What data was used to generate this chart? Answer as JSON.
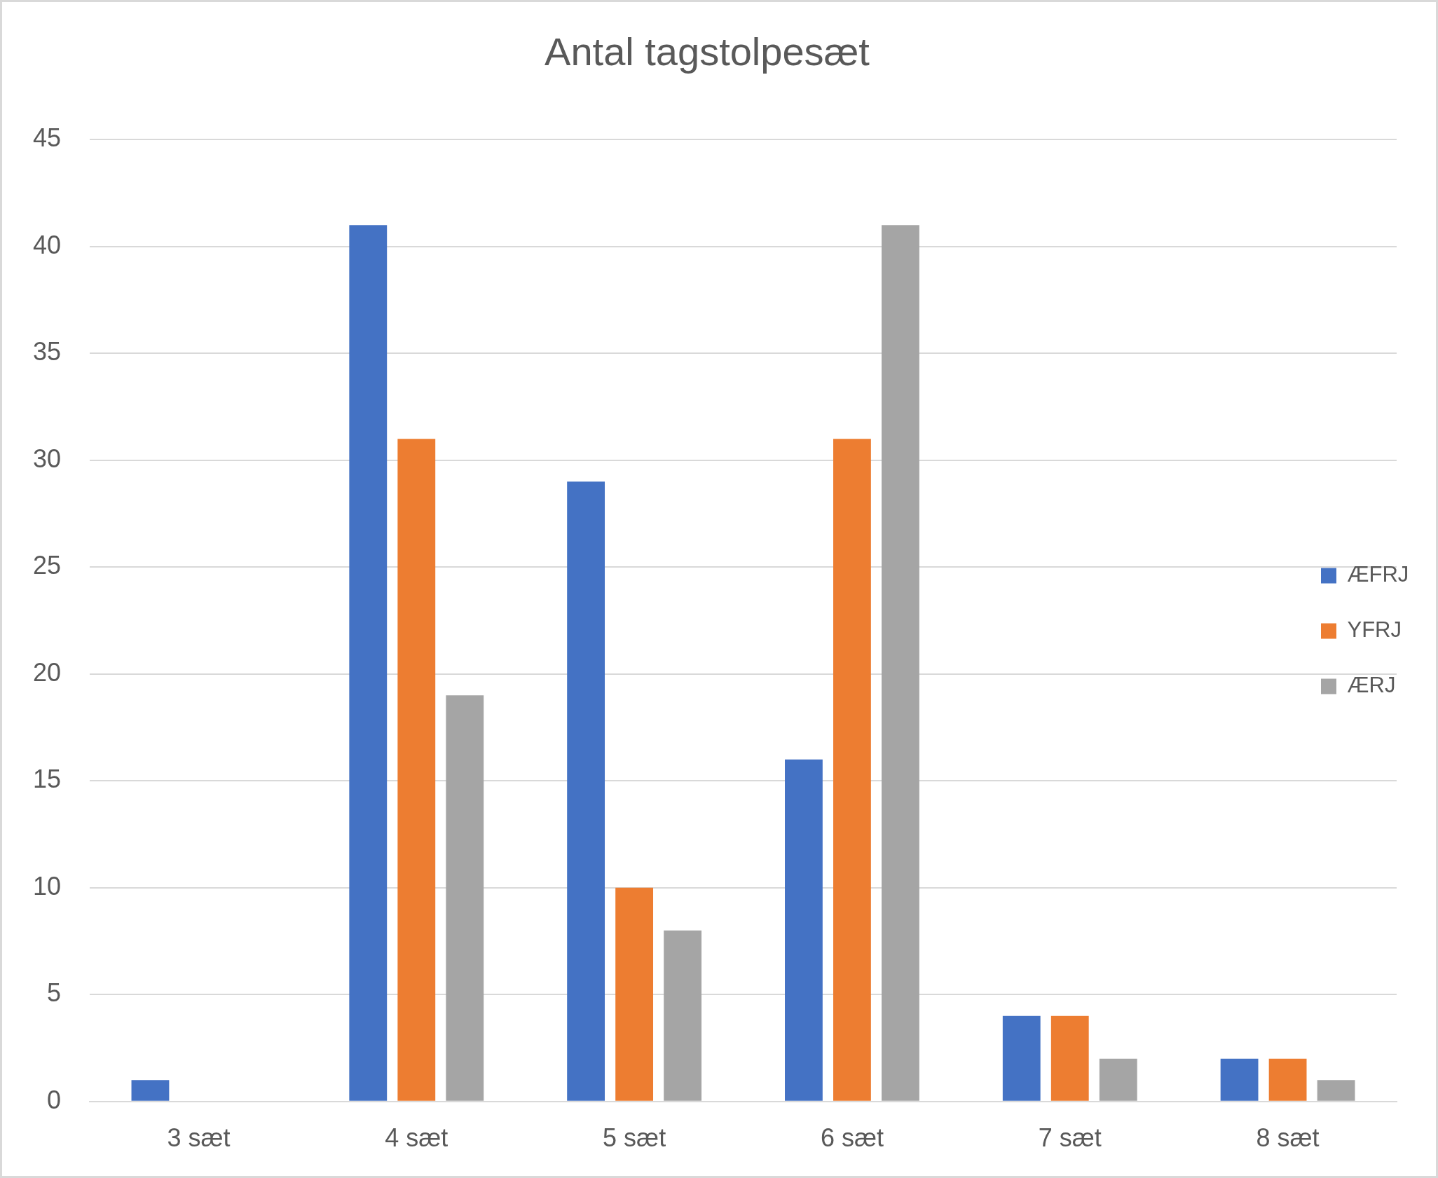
{
  "chart_data": {
    "type": "bar",
    "title": "Antal tagstolpesæt",
    "categories": [
      "3 sæt",
      "4 sæt",
      "5 sæt",
      "6 sæt",
      "7 sæt",
      "8 sæt"
    ],
    "series": [
      {
        "name": "ÆFRJ",
        "color": "#4472c4",
        "values": [
          1,
          41,
          29,
          16,
          4,
          2
        ]
      },
      {
        "name": "YFRJ",
        "color": "#ed7d31",
        "values": [
          0,
          31,
          10,
          31,
          4,
          2
        ]
      },
      {
        "name": "ÆRJ",
        "color": "#a5a5a5",
        "values": [
          0,
          19,
          8,
          41,
          2,
          1
        ]
      }
    ],
    "ylim": [
      0,
      45
    ],
    "yticks": [
      0,
      5,
      10,
      15,
      20,
      25,
      30,
      35,
      40,
      45
    ],
    "grid": "y",
    "legend": "right"
  }
}
